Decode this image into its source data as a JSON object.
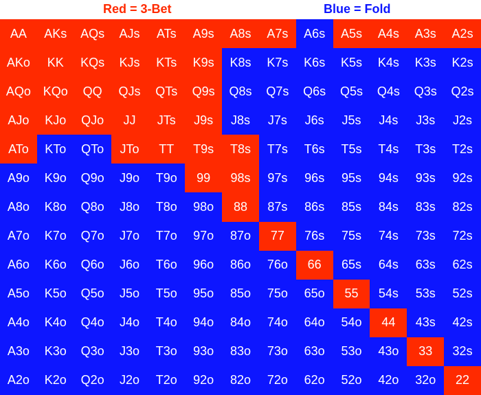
{
  "legend": {
    "red_label": "Red = 3-Bet",
    "blue_label": "Blue = Fold"
  },
  "colors": {
    "red": "#ff2a00",
    "blue": "#0d16ff",
    "text": "#ffffff"
  },
  "grid": {
    "rows": [
      [
        [
          "AA",
          "red"
        ],
        [
          "AKs",
          "red"
        ],
        [
          "AQs",
          "red"
        ],
        [
          "AJs",
          "red"
        ],
        [
          "ATs",
          "red"
        ],
        [
          "A9s",
          "red"
        ],
        [
          "A8s",
          "red"
        ],
        [
          "A7s",
          "red"
        ],
        [
          "A6s",
          "blue"
        ],
        [
          "A5s",
          "red"
        ],
        [
          "A4s",
          "red"
        ],
        [
          "A3s",
          "red"
        ],
        [
          "A2s",
          "red"
        ]
      ],
      [
        [
          "AKo",
          "red"
        ],
        [
          "KK",
          "red"
        ],
        [
          "KQs",
          "red"
        ],
        [
          "KJs",
          "red"
        ],
        [
          "KTs",
          "red"
        ],
        [
          "K9s",
          "red"
        ],
        [
          "K8s",
          "blue"
        ],
        [
          "K7s",
          "blue"
        ],
        [
          "K6s",
          "blue"
        ],
        [
          "K5s",
          "blue"
        ],
        [
          "K4s",
          "blue"
        ],
        [
          "K3s",
          "blue"
        ],
        [
          "K2s",
          "blue"
        ]
      ],
      [
        [
          "AQo",
          "red"
        ],
        [
          "KQo",
          "red"
        ],
        [
          "QQ",
          "red"
        ],
        [
          "QJs",
          "red"
        ],
        [
          "QTs",
          "red"
        ],
        [
          "Q9s",
          "red"
        ],
        [
          "Q8s",
          "blue"
        ],
        [
          "Q7s",
          "blue"
        ],
        [
          "Q6s",
          "blue"
        ],
        [
          "Q5s",
          "blue"
        ],
        [
          "Q4s",
          "blue"
        ],
        [
          "Q3s",
          "blue"
        ],
        [
          "Q2s",
          "blue"
        ]
      ],
      [
        [
          "AJo",
          "red"
        ],
        [
          "KJo",
          "red"
        ],
        [
          "QJo",
          "red"
        ],
        [
          "JJ",
          "red"
        ],
        [
          "JTs",
          "red"
        ],
        [
          "J9s",
          "red"
        ],
        [
          "J8s",
          "blue"
        ],
        [
          "J7s",
          "blue"
        ],
        [
          "J6s",
          "blue"
        ],
        [
          "J5s",
          "blue"
        ],
        [
          "J4s",
          "blue"
        ],
        [
          "J3s",
          "blue"
        ],
        [
          "J2s",
          "blue"
        ]
      ],
      [
        [
          "ATo",
          "red"
        ],
        [
          "KTo",
          "blue"
        ],
        [
          "QTo",
          "blue"
        ],
        [
          "JTo",
          "red"
        ],
        [
          "TT",
          "red"
        ],
        [
          "T9s",
          "red"
        ],
        [
          "T8s",
          "red"
        ],
        [
          "T7s",
          "blue"
        ],
        [
          "T6s",
          "blue"
        ],
        [
          "T5s",
          "blue"
        ],
        [
          "T4s",
          "blue"
        ],
        [
          "T3s",
          "blue"
        ],
        [
          "T2s",
          "blue"
        ]
      ],
      [
        [
          "A9o",
          "blue"
        ],
        [
          "K9o",
          "blue"
        ],
        [
          "Q9o",
          "blue"
        ],
        [
          "J9o",
          "blue"
        ],
        [
          "T9o",
          "blue"
        ],
        [
          "99",
          "red"
        ],
        [
          "98s",
          "red"
        ],
        [
          "97s",
          "blue"
        ],
        [
          "96s",
          "blue"
        ],
        [
          "95s",
          "blue"
        ],
        [
          "94s",
          "blue"
        ],
        [
          "93s",
          "blue"
        ],
        [
          "92s",
          "blue"
        ]
      ],
      [
        [
          "A8o",
          "blue"
        ],
        [
          "K8o",
          "blue"
        ],
        [
          "Q8o",
          "blue"
        ],
        [
          "J8o",
          "blue"
        ],
        [
          "T8o",
          "blue"
        ],
        [
          "98o",
          "blue"
        ],
        [
          "88",
          "red"
        ],
        [
          "87s",
          "blue"
        ],
        [
          "86s",
          "blue"
        ],
        [
          "85s",
          "blue"
        ],
        [
          "84s",
          "blue"
        ],
        [
          "83s",
          "blue"
        ],
        [
          "82s",
          "blue"
        ]
      ],
      [
        [
          "A7o",
          "blue"
        ],
        [
          "K7o",
          "blue"
        ],
        [
          "Q7o",
          "blue"
        ],
        [
          "J7o",
          "blue"
        ],
        [
          "T7o",
          "blue"
        ],
        [
          "97o",
          "blue"
        ],
        [
          "87o",
          "blue"
        ],
        [
          "77",
          "red"
        ],
        [
          "76s",
          "blue"
        ],
        [
          "75s",
          "blue"
        ],
        [
          "74s",
          "blue"
        ],
        [
          "73s",
          "blue"
        ],
        [
          "72s",
          "blue"
        ]
      ],
      [
        [
          "A6o",
          "blue"
        ],
        [
          "K6o",
          "blue"
        ],
        [
          "Q6o",
          "blue"
        ],
        [
          "J6o",
          "blue"
        ],
        [
          "T6o",
          "blue"
        ],
        [
          "96o",
          "blue"
        ],
        [
          "86o",
          "blue"
        ],
        [
          "76o",
          "blue"
        ],
        [
          "66",
          "red"
        ],
        [
          "65s",
          "blue"
        ],
        [
          "64s",
          "blue"
        ],
        [
          "63s",
          "blue"
        ],
        [
          "62s",
          "blue"
        ]
      ],
      [
        [
          "A5o",
          "blue"
        ],
        [
          "K5o",
          "blue"
        ],
        [
          "Q5o",
          "blue"
        ],
        [
          "J5o",
          "blue"
        ],
        [
          "T5o",
          "blue"
        ],
        [
          "95o",
          "blue"
        ],
        [
          "85o",
          "blue"
        ],
        [
          "75o",
          "blue"
        ],
        [
          "65o",
          "blue"
        ],
        [
          "55",
          "red"
        ],
        [
          "54s",
          "blue"
        ],
        [
          "53s",
          "blue"
        ],
        [
          "52s",
          "blue"
        ]
      ],
      [
        [
          "A4o",
          "blue"
        ],
        [
          "K4o",
          "blue"
        ],
        [
          "Q4o",
          "blue"
        ],
        [
          "J4o",
          "blue"
        ],
        [
          "T4o",
          "blue"
        ],
        [
          "94o",
          "blue"
        ],
        [
          "84o",
          "blue"
        ],
        [
          "74o",
          "blue"
        ],
        [
          "64o",
          "blue"
        ],
        [
          "54o",
          "blue"
        ],
        [
          "44",
          "red"
        ],
        [
          "43s",
          "blue"
        ],
        [
          "42s",
          "blue"
        ]
      ],
      [
        [
          "A3o",
          "blue"
        ],
        [
          "K3o",
          "blue"
        ],
        [
          "Q3o",
          "blue"
        ],
        [
          "J3o",
          "blue"
        ],
        [
          "T3o",
          "blue"
        ],
        [
          "93o",
          "blue"
        ],
        [
          "83o",
          "blue"
        ],
        [
          "73o",
          "blue"
        ],
        [
          "63o",
          "blue"
        ],
        [
          "53o",
          "blue"
        ],
        [
          "43o",
          "blue"
        ],
        [
          "33",
          "red"
        ],
        [
          "32s",
          "blue"
        ]
      ],
      [
        [
          "A2o",
          "blue"
        ],
        [
          "K2o",
          "blue"
        ],
        [
          "Q2o",
          "blue"
        ],
        [
          "J2o",
          "blue"
        ],
        [
          "T2o",
          "blue"
        ],
        [
          "92o",
          "blue"
        ],
        [
          "82o",
          "blue"
        ],
        [
          "72o",
          "blue"
        ],
        [
          "62o",
          "blue"
        ],
        [
          "52o",
          "blue"
        ],
        [
          "42o",
          "blue"
        ],
        [
          "32o",
          "blue"
        ],
        [
          "22",
          "red"
        ]
      ]
    ]
  }
}
